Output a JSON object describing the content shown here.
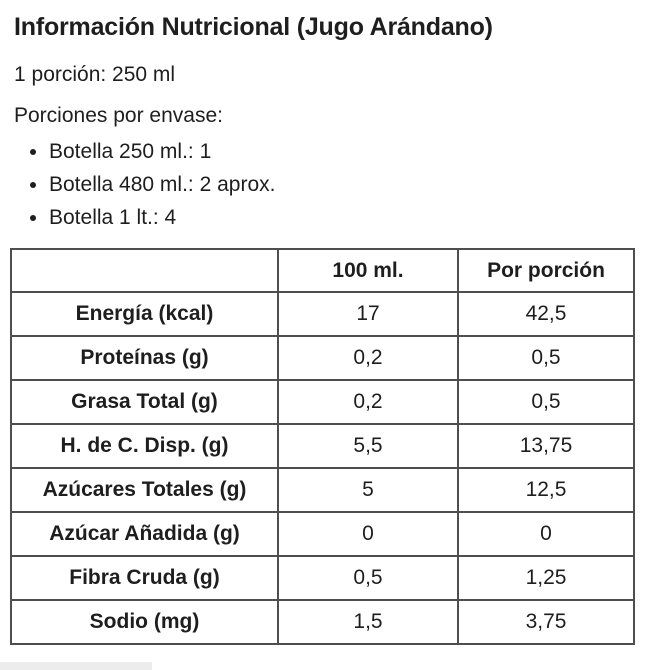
{
  "header": {
    "title": "Información Nutricional (Jugo Arándano)",
    "serving_line": "1 porción: 250 ml",
    "servings_heading": "Porciones por envase:",
    "servings_list": [
      "Botella 250 ml.: 1",
      "Botella 480 ml.: 2 aprox.",
      "Botella 1 lt.: 4"
    ]
  },
  "table": {
    "columns": [
      "",
      "100 ml.",
      "Por porción"
    ],
    "rows": [
      {
        "label": "Energía (kcal)",
        "per_100ml": "17",
        "per_porcion": "42,5"
      },
      {
        "label": "Proteínas (g)",
        "per_100ml": "0,2",
        "per_porcion": "0,5"
      },
      {
        "label": "Grasa Total (g)",
        "per_100ml": "0,2",
        "per_porcion": "0,5"
      },
      {
        "label": "H. de C. Disp. (g)",
        "per_100ml": "5,5",
        "per_porcion": "13,75"
      },
      {
        "label": "Azúcares Totales (g)",
        "per_100ml": "5",
        "per_porcion": "12,5"
      },
      {
        "label": "Azúcar Añadida (g)",
        "per_100ml": "0",
        "per_porcion": "0"
      },
      {
        "label": "Fibra Cruda (g)",
        "per_100ml": "0,5",
        "per_porcion": "1,25"
      },
      {
        "label": "Sodio (mg)",
        "per_100ml": "1,5",
        "per_porcion": "3,75"
      }
    ]
  },
  "colors": {
    "text": "#1e1e1e",
    "table_border": "#4e4e4e",
    "background": "#ffffff",
    "artifact_strip": "#ececec"
  }
}
